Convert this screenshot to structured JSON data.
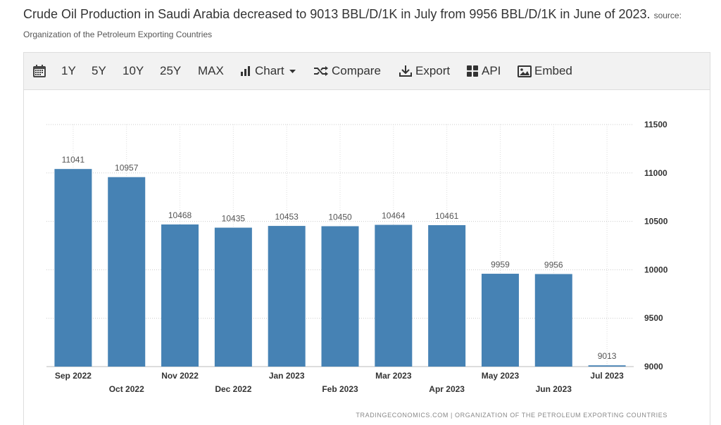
{
  "headline": {
    "text": "Crude Oil Production in Saudi Arabia decreased to 9013 BBL/D/1K in July from 9956 BBL/D/1K in June of 2023.",
    "source_label": "source:",
    "source_name": "Organization of the Petroleum Exporting Countries"
  },
  "toolbar": {
    "calendar_icon": "calendar-icon",
    "range_1y": "1Y",
    "range_5y": "5Y",
    "range_10y": "10Y",
    "range_25y": "25Y",
    "range_max": "MAX",
    "chart_label": "Chart",
    "compare_label": "Compare",
    "export_label": "Export",
    "api_label": "API",
    "embed_label": "Embed"
  },
  "watermark": "TRADINGECONOMICS.COM  |  ORGANIZATION OF THE PETROLEUM EXPORTING COUNTRIES",
  "chart_data": {
    "type": "bar",
    "categories": [
      "Sep 2022",
      "Oct 2022",
      "Nov 2022",
      "Dec 2022",
      "Jan 2023",
      "Feb 2023",
      "Mar 2023",
      "Apr 2023",
      "May 2023",
      "Jun 2023",
      "Jul 2023"
    ],
    "values": [
      11041,
      10957,
      10468,
      10435,
      10453,
      10450,
      10464,
      10461,
      9959,
      9956,
      9013
    ],
    "data_labels": [
      "11041",
      "10957",
      "10468",
      "10435",
      "10453",
      "10450",
      "10464",
      "10461",
      "9959",
      "9956",
      "9013"
    ],
    "yticks": [
      "9000",
      "9500",
      "10000",
      "10500",
      "11000",
      "11500"
    ],
    "ylim": [
      9000,
      11500
    ],
    "y_axis_side": "right",
    "grid": true,
    "bar_color": "#4682b4",
    "title": "",
    "xlabel": "",
    "ylabel": ""
  }
}
